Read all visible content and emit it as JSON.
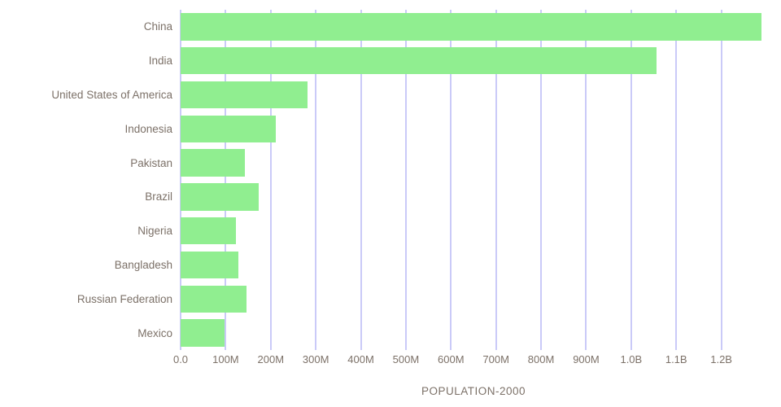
{
  "chart_data": {
    "type": "bar",
    "orientation": "horizontal",
    "title": "POPULATION-2000",
    "xlabel": "",
    "ylabel": "",
    "unit": "millions",
    "xlim": [
      0,
      1300
    ],
    "grid": true,
    "categories": [
      "China",
      "India",
      "United States of America",
      "Indonesia",
      "Pakistan",
      "Brazil",
      "Nigeria",
      "Bangladesh",
      "Russian Federation",
      "Mexico"
    ],
    "values": [
      1290,
      1057,
      282,
      211,
      142,
      174,
      122,
      128,
      146,
      98
    ],
    "x_ticks": [
      {
        "label": "0.0",
        "value": 0
      },
      {
        "label": "100M",
        "value": 100
      },
      {
        "label": "200M",
        "value": 200
      },
      {
        "label": "300M",
        "value": 300
      },
      {
        "label": "400M",
        "value": 400
      },
      {
        "label": "500M",
        "value": 500
      },
      {
        "label": "600M",
        "value": 600
      },
      {
        "label": "700M",
        "value": 700
      },
      {
        "label": "800M",
        "value": 800
      },
      {
        "label": "900M",
        "value": 900
      },
      {
        "label": "1.0B",
        "value": 1000
      },
      {
        "label": "1.1B",
        "value": 1100
      },
      {
        "label": "1.2B",
        "value": 1200
      }
    ],
    "colors": {
      "bar": "#90ee90",
      "gridline": "#9595f2",
      "text": "#7c7168"
    }
  }
}
